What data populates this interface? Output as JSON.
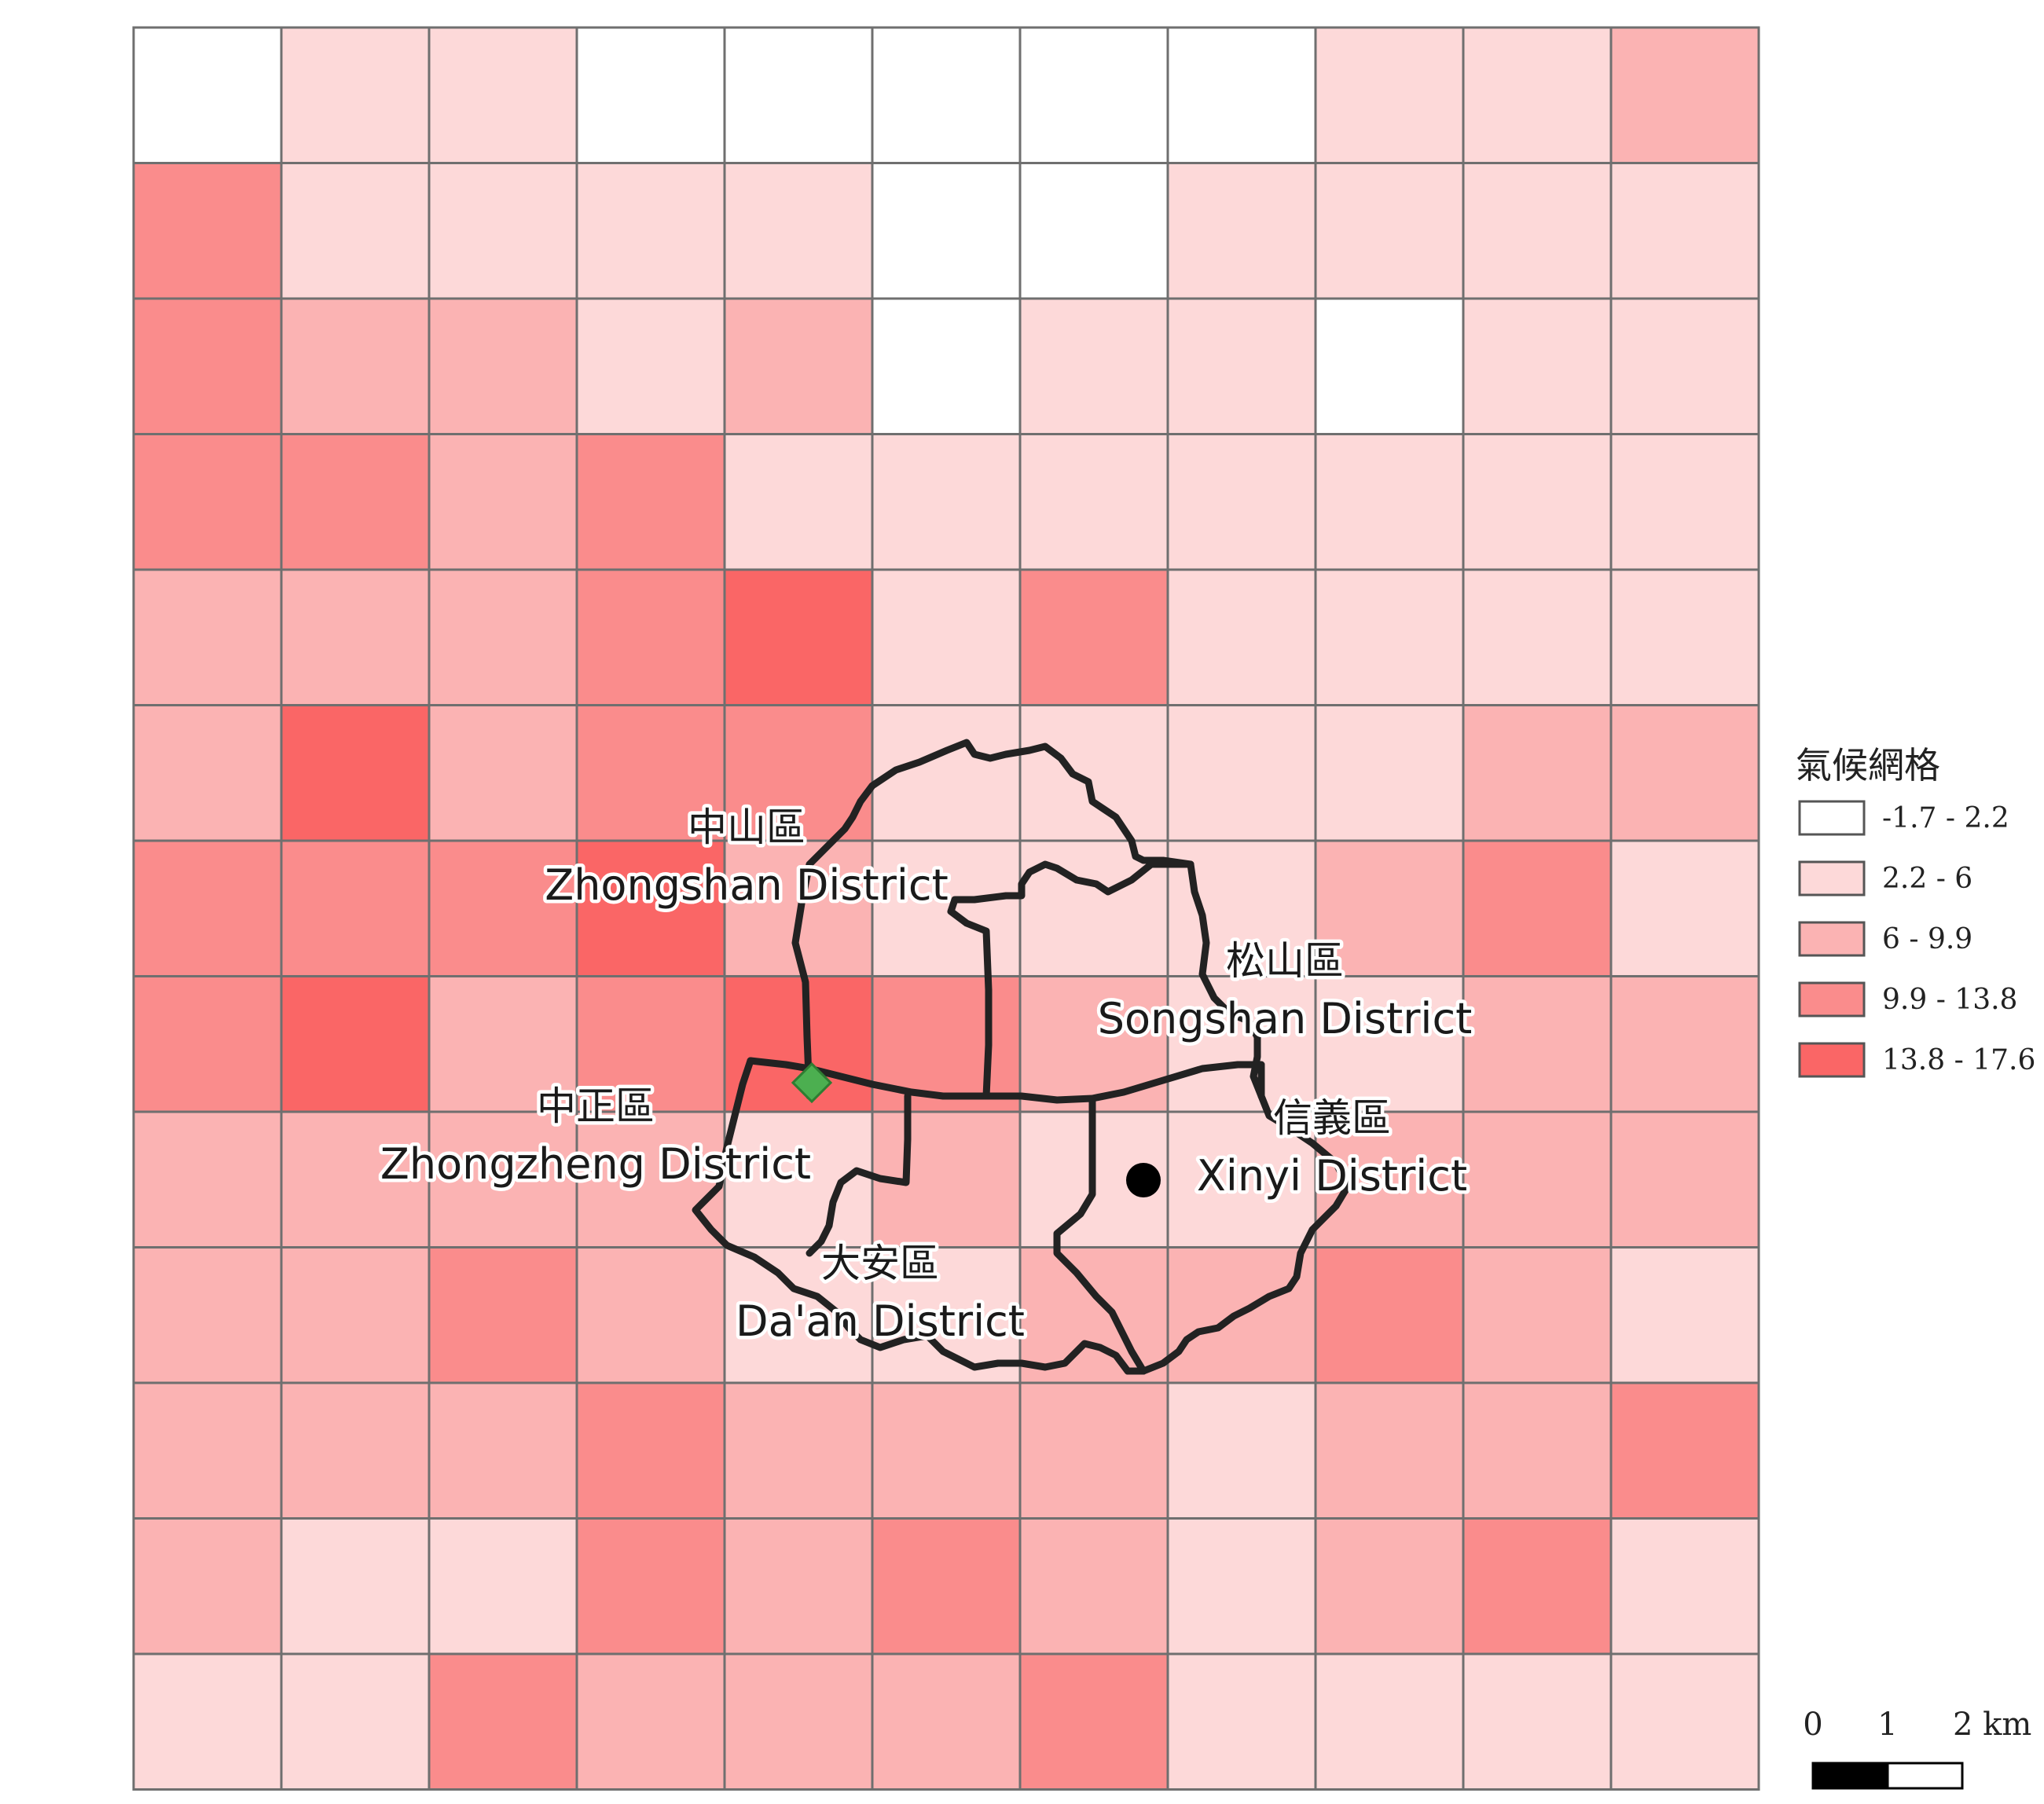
{
  "legend": {
    "title": "氣候網格",
    "classes": [
      {
        "label": "-1.7 - 2.2",
        "color": "#ffffff"
      },
      {
        "label": "2.2 - 6",
        "color": "#fdd9d9"
      },
      {
        "label": "6 - 9.9",
        "color": "#fbb3b3"
      },
      {
        "label": "9.9 - 13.8",
        "color": "#fa8c8c"
      },
      {
        "label": "13.8 - 17.6",
        "color": "#fa6666"
      }
    ]
  },
  "grid": {
    "rows": 13,
    "cols": 11,
    "classes": [
      [
        0,
        1,
        1,
        0,
        0,
        0,
        0,
        0,
        1,
        1,
        2
      ],
      [
        3,
        1,
        1,
        1,
        1,
        0,
        0,
        1,
        1,
        1,
        1
      ],
      [
        3,
        2,
        2,
        1,
        2,
        0,
        1,
        1,
        0,
        1,
        1
      ],
      [
        3,
        3,
        2,
        3,
        1,
        1,
        1,
        1,
        1,
        1,
        1
      ],
      [
        2,
        2,
        2,
        3,
        4,
        1,
        3,
        1,
        1,
        1,
        1
      ],
      [
        2,
        4,
        2,
        3,
        3,
        1,
        1,
        1,
        1,
        2,
        2
      ],
      [
        3,
        3,
        3,
        4,
        2,
        1,
        1,
        1,
        2,
        3,
        1
      ],
      [
        3,
        4,
        2,
        3,
        4,
        3,
        2,
        1,
        1,
        2,
        2
      ],
      [
        2,
        2,
        2,
        2,
        1,
        2,
        1,
        1,
        2,
        2,
        2
      ],
      [
        2,
        2,
        3,
        2,
        1,
        1,
        2,
        2,
        3,
        2,
        1
      ],
      [
        2,
        2,
        2,
        3,
        2,
        2,
        2,
        1,
        2,
        2,
        3
      ],
      [
        2,
        1,
        1,
        3,
        2,
        3,
        2,
        1,
        2,
        3,
        1
      ],
      [
        1,
        1,
        3,
        2,
        2,
        2,
        3,
        1,
        1,
        1,
        1
      ]
    ]
  },
  "districts": [
    {
      "id": "zhongshan",
      "name_zh": "中山區",
      "name_en": "Zhongshan District"
    },
    {
      "id": "songshan",
      "name_zh": "松山區",
      "name_en": "Songshan District"
    },
    {
      "id": "zhongzheng",
      "name_zh": "中正區",
      "name_en": "Zhongzheng District"
    },
    {
      "id": "xinyi",
      "name_zh": "信義區",
      "name_en": "Xinyi District"
    },
    {
      "id": "daan",
      "name_zh": "大安區",
      "name_en": "Da'an District"
    }
  ],
  "markers": [
    {
      "name": "green-diamond",
      "color": "#4caf50"
    },
    {
      "name": "black-dot",
      "color": "#000000"
    }
  ],
  "scale_bar": {
    "labels": [
      "0",
      "1",
      "2 km"
    ]
  }
}
